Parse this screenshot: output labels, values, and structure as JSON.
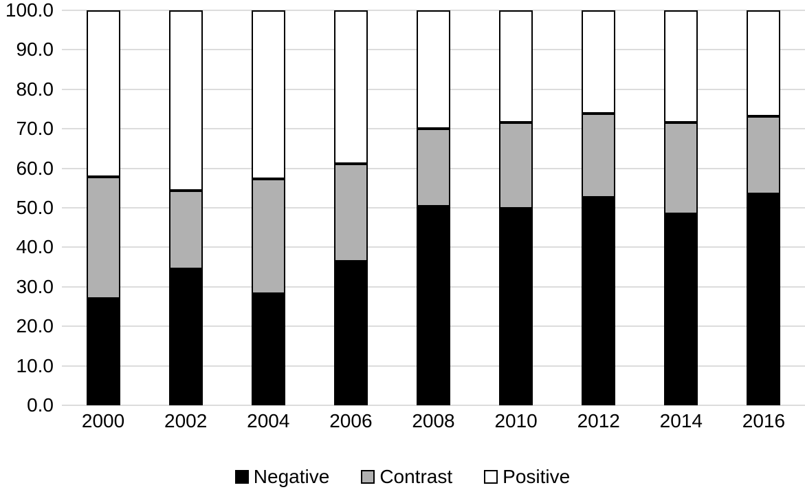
{
  "chart_data": {
    "type": "bar",
    "stacked": true,
    "normalized_to_100": true,
    "title": "",
    "xlabel": "",
    "ylabel": "",
    "categories": [
      "2000",
      "2002",
      "2004",
      "2006",
      "2008",
      "2010",
      "2012",
      "2014",
      "2016"
    ],
    "series": [
      {
        "name": "Negative",
        "color": "#000000",
        "values": [
          27.0,
          34.5,
          28.3,
          36.5,
          50.3,
          49.9,
          52.6,
          48.5,
          53.5
        ]
      },
      {
        "name": "Contrast",
        "color": "#b1b1b1",
        "values": [
          30.8,
          19.8,
          29.1,
          24.7,
          19.8,
          21.7,
          21.3,
          23.1,
          19.6
        ]
      },
      {
        "name": "Positive",
        "color": "#ffffff",
        "values": [
          42.2,
          45.7,
          42.6,
          38.8,
          29.9,
          28.4,
          26.1,
          28.4,
          26.9
        ]
      }
    ],
    "ylim": [
      0,
      100
    ],
    "ytick_step": 10,
    "ytick_labels": [
      "0.0",
      "10.0",
      "20.0",
      "30.0",
      "40.0",
      "50.0",
      "60.0",
      "70.0",
      "80.0",
      "90.0",
      "100.0"
    ],
    "grid": true,
    "gridline_color": "#dcdcdc",
    "bar_border_color": "#000000",
    "legend_position": "bottom"
  }
}
